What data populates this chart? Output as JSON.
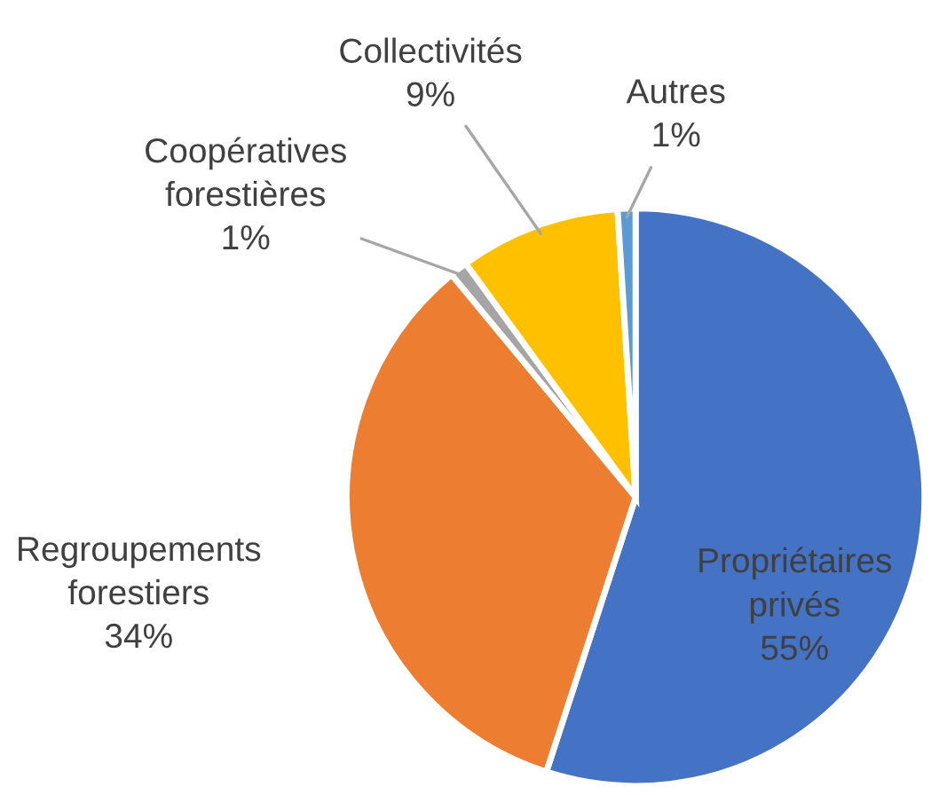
{
  "chart_data": {
    "type": "pie",
    "categories": [
      "Propriétaires\nprivés",
      "Regroupements\nforestiers",
      "Coopératives\nforestières",
      "Collectivités",
      "Autres"
    ],
    "values": [
      55,
      34,
      1,
      9,
      1
    ],
    "value_labels": [
      "55%",
      "34%",
      "1%",
      "9%",
      "1%"
    ],
    "colors": [
      "#4472c4",
      "#ed7d31",
      "#a5a5a5",
      "#ffc000",
      "#5b9bd5"
    ],
    "legend": false
  }
}
